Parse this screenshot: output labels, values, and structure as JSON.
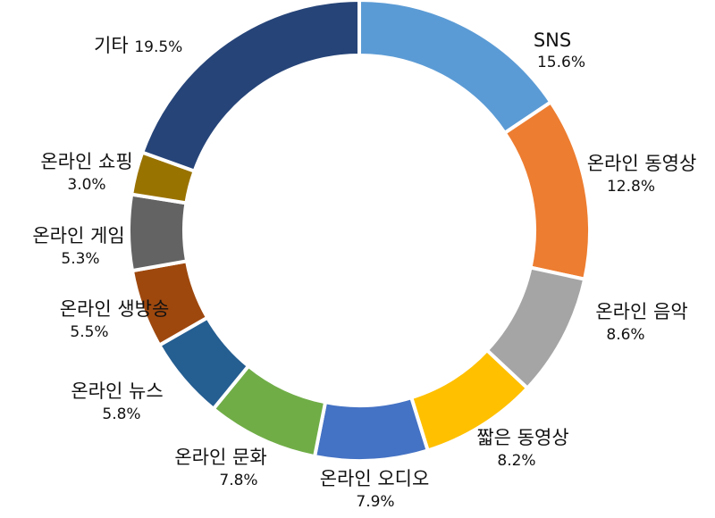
{
  "chart_data": {
    "type": "pie",
    "title": "",
    "categories": [
      "SNS",
      "온라인 동영상",
      "온라인 음악",
      "짧은 동영상",
      "온라인 오디오",
      "온라인 문화",
      "온라인 뉴스",
      "온라인 생방송",
      "온라인 게임",
      "온라인 쇼핑",
      "기타"
    ],
    "values": [
      15.6,
      12.8,
      8.6,
      8.2,
      7.9,
      7.8,
      5.8,
      5.5,
      5.3,
      3.0,
      19.5
    ],
    "value_labels": [
      "15.6%",
      "12.8%",
      "8.6%",
      "8.2%",
      "7.9%",
      "7.8%",
      "5.8%",
      "5.5%",
      "5.3%",
      "3.0%",
      "19.5%"
    ],
    "colors": [
      "#5B9BD5",
      "#ED7D31",
      "#A5A5A5",
      "#FFC000",
      "#4472C4",
      "#70AD47",
      "#255E91",
      "#9E480E",
      "#636363",
      "#997300",
      "#264478"
    ],
    "legend": "none",
    "donut": true
  }
}
